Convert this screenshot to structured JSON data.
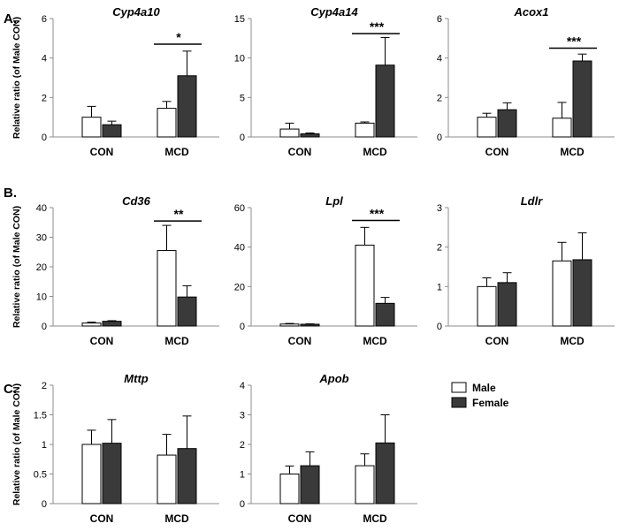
{
  "figure": {
    "panel_labels": [
      "A.",
      "B.",
      "C."
    ],
    "ylabel": "Relative ratio (of Male CON)"
  },
  "legend": {
    "male": "Male",
    "female": "Female"
  },
  "colors": {
    "male": "#ffffff",
    "female": "#3a3a3a",
    "stroke": "#000000",
    "axis": "#8c8c8c"
  },
  "chart_data": [
    {
      "type": "bar",
      "title": "Cyp4a10",
      "categories": [
        "CON",
        "MCD"
      ],
      "ylim": [
        0,
        6
      ],
      "yticks": [
        0,
        2,
        4,
        6
      ],
      "ylabel": "Relative ratio (of Male CON)",
      "series": [
        {
          "name": "Male",
          "values": [
            1.0,
            1.45
          ],
          "errors": [
            0.55,
            0.35
          ]
        },
        {
          "name": "Female",
          "values": [
            0.62,
            3.1
          ],
          "errors": [
            0.18,
            1.25
          ]
        }
      ],
      "significance": {
        "category": "MCD",
        "label": "*",
        "y": 4.7
      }
    },
    {
      "type": "bar",
      "title": "Cyp4a14",
      "categories": [
        "CON",
        "MCD"
      ],
      "ylim": [
        0,
        15
      ],
      "yticks": [
        0,
        5,
        10,
        15
      ],
      "series": [
        {
          "name": "Male",
          "values": [
            1.0,
            1.75
          ],
          "errors": [
            0.75,
            0.15
          ]
        },
        {
          "name": "Female",
          "values": [
            0.4,
            9.1
          ],
          "errors": [
            0.1,
            3.5
          ]
        }
      ],
      "significance": {
        "category": "MCD",
        "label": "***",
        "y": 13.1
      }
    },
    {
      "type": "bar",
      "title": "Acox1",
      "categories": [
        "CON",
        "MCD"
      ],
      "ylim": [
        0,
        6
      ],
      "yticks": [
        0,
        2,
        4,
        6
      ],
      "series": [
        {
          "name": "Male",
          "values": [
            1.0,
            0.95
          ],
          "errors": [
            0.2,
            0.8
          ]
        },
        {
          "name": "Female",
          "values": [
            1.38,
            3.85
          ],
          "errors": [
            0.35,
            0.35
          ]
        }
      ],
      "significance": {
        "category": "MCD",
        "label": "***",
        "y": 4.5
      }
    },
    {
      "type": "bar",
      "title": "Cd36",
      "categories": [
        "CON",
        "MCD"
      ],
      "ylim": [
        0,
        40
      ],
      "yticks": [
        0,
        10,
        20,
        30,
        40
      ],
      "ylabel": "Relative ratio (of Male CON)",
      "series": [
        {
          "name": "Male",
          "values": [
            1.0,
            25.5
          ],
          "errors": [
            0.3,
            8.5
          ]
        },
        {
          "name": "Female",
          "values": [
            1.6,
            9.8
          ],
          "errors": [
            0.2,
            3.8
          ]
        }
      ],
      "significance": {
        "category": "MCD",
        "label": "**",
        "y": 35.5
      }
    },
    {
      "type": "bar",
      "title": "Lpl",
      "categories": [
        "CON",
        "MCD"
      ],
      "ylim": [
        0,
        60
      ],
      "yticks": [
        0,
        20,
        40,
        60
      ],
      "series": [
        {
          "name": "Male",
          "values": [
            1.0,
            41.0
          ],
          "errors": [
            0.3,
            9.0
          ]
        },
        {
          "name": "Female",
          "values": [
            0.9,
            11.5
          ],
          "errors": [
            0.2,
            3.0
          ]
        }
      ],
      "significance": {
        "category": "MCD",
        "label": "***",
        "y": 53.5
      }
    },
    {
      "type": "bar",
      "title": "Ldlr",
      "categories": [
        "CON",
        "MCD"
      ],
      "ylim": [
        0,
        3
      ],
      "yticks": [
        0,
        1,
        2,
        3
      ],
      "series": [
        {
          "name": "Male",
          "values": [
            1.0,
            1.65
          ],
          "errors": [
            0.22,
            0.47
          ]
        },
        {
          "name": "Female",
          "values": [
            1.1,
            1.68
          ],
          "errors": [
            0.25,
            0.68
          ]
        }
      ]
    },
    {
      "type": "bar",
      "title": "Mttp",
      "categories": [
        "CON",
        "MCD"
      ],
      "ylim": [
        0,
        2
      ],
      "yticks": [
        "0",
        "0.5",
        "1",
        "1.5",
        "2"
      ],
      "ylabel": "Relative ratio (of Male CON)",
      "series": [
        {
          "name": "Male",
          "values": [
            1.0,
            0.82
          ],
          "errors": [
            0.24,
            0.35
          ]
        },
        {
          "name": "Female",
          "values": [
            1.02,
            0.93
          ],
          "errors": [
            0.4,
            0.55
          ]
        }
      ]
    },
    {
      "type": "bar",
      "title": "Apob",
      "categories": [
        "CON",
        "MCD"
      ],
      "ylim": [
        0,
        4
      ],
      "yticks": [
        0,
        1,
        2,
        3,
        4
      ],
      "series": [
        {
          "name": "Male",
          "values": [
            1.0,
            1.28
          ],
          "errors": [
            0.27,
            0.4
          ]
        },
        {
          "name": "Female",
          "values": [
            1.28,
            2.05
          ],
          "errors": [
            0.47,
            0.95
          ]
        }
      ]
    }
  ]
}
